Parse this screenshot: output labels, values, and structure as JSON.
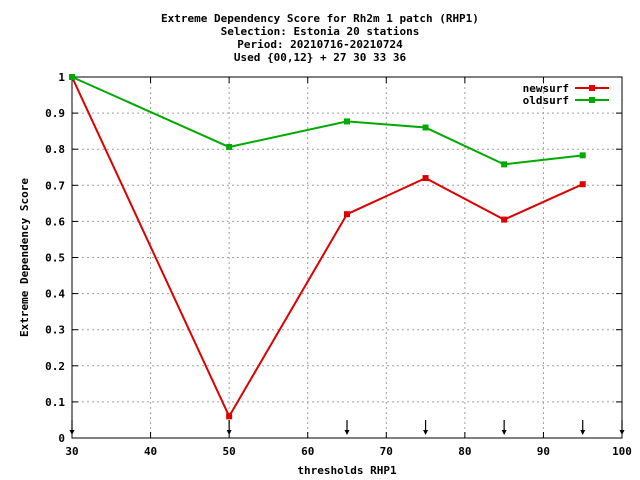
{
  "title_lines": [
    "Extreme Dependency Score  for Rh2m 1 patch (RHP1)",
    "Selection: Estonia     20 stations",
    "Period: 20210716-20210724",
    "Used {00,12} + 27 30 33 36"
  ],
  "chart_data": {
    "type": "line",
    "xlabel": "thresholds RHP1",
    "ylabel": "Extreme Dependency Score",
    "xlim": [
      30,
      100
    ],
    "ylim": [
      0,
      1
    ],
    "xticks": [
      30,
      40,
      50,
      60,
      70,
      80,
      90,
      100
    ],
    "yticks": [
      0,
      0.1,
      0.2,
      0.3,
      0.4,
      0.5,
      0.6,
      0.7,
      0.8,
      0.9,
      1
    ],
    "xtick_labels": [
      "30",
      "40",
      "50",
      "60",
      "70",
      "80",
      "90",
      "100"
    ],
    "ytick_labels": [
      "0",
      "0.1",
      "0.2",
      "0.3",
      "0.4",
      "0.5",
      "0.6",
      "0.7",
      "0.8",
      "0.9",
      "1"
    ],
    "grid": true,
    "legend_position": "top-right",
    "x": [
      30,
      50,
      65,
      75,
      85,
      95
    ],
    "series": [
      {
        "name": "newsurf",
        "color": "#dd0000",
        "values": [
          1.0,
          0.06,
          0.62,
          0.72,
          0.605,
          0.703
        ]
      },
      {
        "name": "oldsurf",
        "color": "#00aa00",
        "values": [
          1.0,
          0.806,
          0.877,
          0.86,
          0.758,
          0.783
        ]
      }
    ],
    "arrow_markers_x": [
      30,
      50,
      65,
      75,
      85,
      95,
      100
    ]
  }
}
